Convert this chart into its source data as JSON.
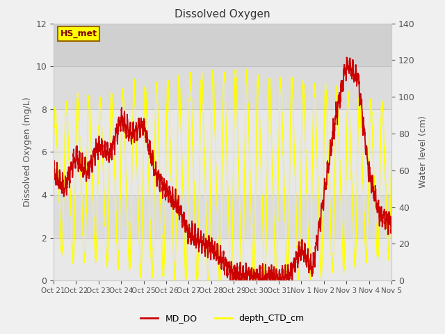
{
  "title": "Dissolved Oxygen",
  "ylabel_left": "Dissolved Oxygen (mg/L)",
  "ylabel_right": "Water level (cm)",
  "ylim_left": [
    0,
    12
  ],
  "ylim_right": [
    0,
    140
  ],
  "xtick_labels": [
    "Oct 21",
    "Oct 22",
    "Oct 23",
    "Oct 24",
    "Oct 25",
    "Oct 26",
    "Oct 27",
    "Oct 28",
    "Oct 29",
    "Oct 30",
    "Oct 31",
    "Nov 1",
    "Nov 2",
    "Nov 3",
    "Nov 4",
    "Nov 5"
  ],
  "color_do": "#cc0000",
  "color_depth": "#ffff00",
  "legend_labels": [
    "MD_DO",
    "depth_CTD_cm"
  ],
  "station_label": "HS_met",
  "station_label_bg": "#ffff00",
  "station_label_border": "#996600",
  "fig_bg": "#f0f0f0",
  "plot_bg": "#f0f0f0",
  "band_lighter": "#e8e8e8",
  "band_darker": "#d8d8d8",
  "left_yticks": [
    0,
    2,
    4,
    6,
    8,
    10,
    12
  ],
  "right_yticks": [
    0,
    20,
    40,
    60,
    80,
    100,
    120,
    140
  ],
  "num_days": 15
}
